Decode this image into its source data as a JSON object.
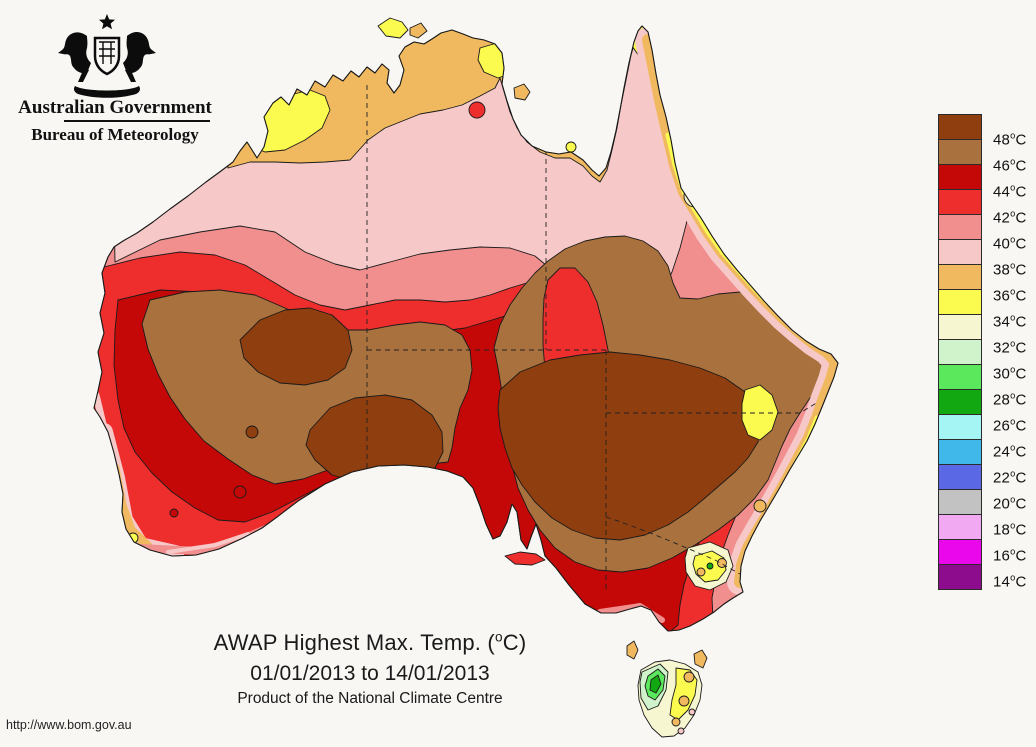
{
  "page": {
    "background": "#f8f7f4"
  },
  "header": {
    "coat_of_arms_icon": "australian-coat-of-arms",
    "gov_title": "Australian Government",
    "bureau_title": "Bureau of Meteorology"
  },
  "legend": {
    "unit_deg": "o",
    "unit": "C",
    "labels": [
      "48",
      "46",
      "44",
      "42",
      "40",
      "38",
      "36",
      "34",
      "32",
      "30",
      "28",
      "26",
      "24",
      "22",
      "20",
      "18",
      "16",
      "14"
    ],
    "colors": [
      "#8F3E0F",
      "#A9713D",
      "#C40808",
      "#EE2E2D",
      "#F18F8F",
      "#F6C8C8",
      "#F0B95F",
      "#FBFB4F",
      "#F6F6D0",
      "#D0F3CB",
      "#5CE85C",
      "#11A811",
      "#A6F5F5",
      "#40B9EA",
      "#5B68E5",
      "#C2C2C2",
      "#F1A9F1",
      "#EB07EB",
      "#8D0C8D"
    ]
  },
  "caption": {
    "title_prefix": "AWAP Highest Max. Temp. (",
    "title_deg": "o",
    "title_suffix": "C)",
    "date_range": "01/01/2013 to 14/01/2013",
    "product_line": "Product of the National Climate Centre"
  },
  "footer": {
    "url": "http://www.bom.gov.au"
  },
  "map": {
    "region": "Australia",
    "type": "filled contour map of highest maximum temperature",
    "contour_interval_degC": 2,
    "legend_range_degC": [
      14,
      48
    ],
    "contour_line_color": "#1a1a1a"
  }
}
